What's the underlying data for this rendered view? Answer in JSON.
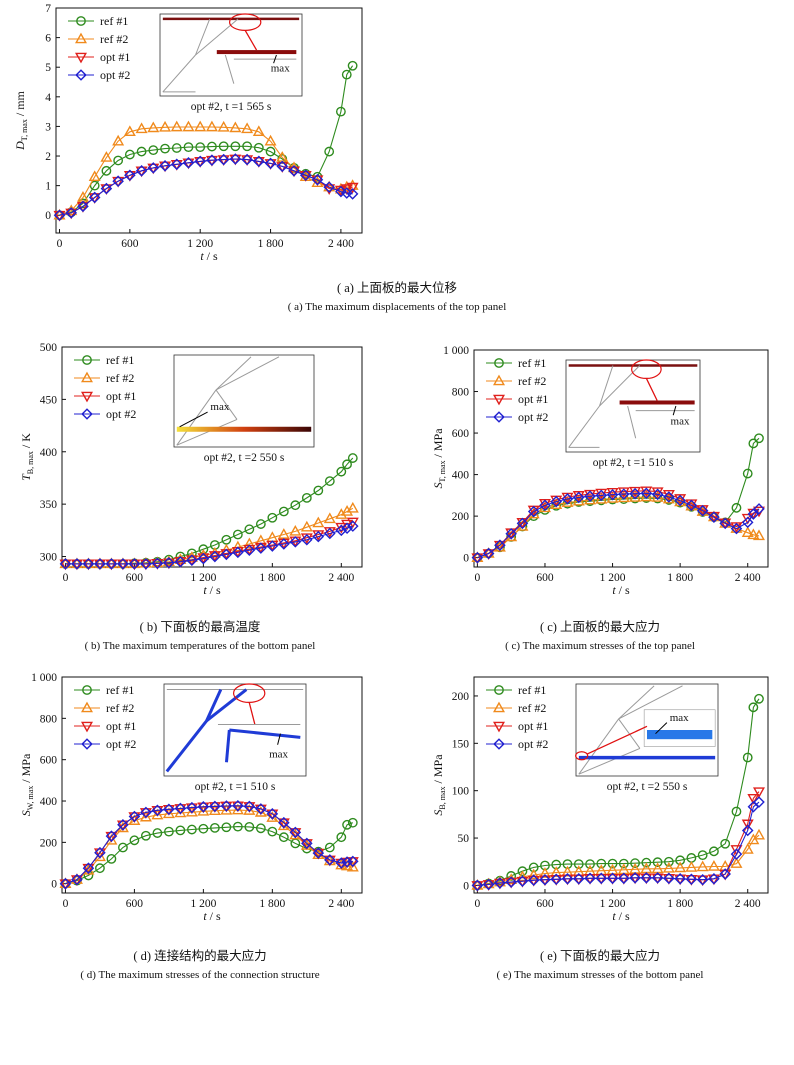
{
  "panels": [
    {
      "id": "a",
      "caption_cn": "( a) 上面板的最大位移",
      "caption_en": "( a) The maximum displacements of the top panel",
      "inset_caption": "opt #2, t =1 565 s",
      "inset_label": "max",
      "inset_kind": "top"
    },
    {
      "id": "b",
      "caption_cn": "( b) 下面板的最高温度",
      "caption_en": "( b) The maximum temperatures of the bottom panel",
      "inset_caption": "opt #2, t =2 550 s",
      "inset_label": "max",
      "inset_kind": "temp"
    },
    {
      "id": "c",
      "caption_cn": "( c) 上面板的最大应力",
      "caption_en": "( c) The maximum stresses of the top panel",
      "inset_caption": "opt #2, t =1 510 s",
      "inset_label": "max",
      "inset_kind": "top"
    },
    {
      "id": "d",
      "caption_cn": "( d) 连接结构的最大应力",
      "caption_en": "( d) The maximum stresses of the connection structure",
      "inset_caption": "opt #2, t =1 510 s",
      "inset_label": "max",
      "inset_kind": "web"
    },
    {
      "id": "e",
      "caption_cn": "( e) 下面板的最大应力",
      "caption_en": "( e) The maximum stresses of the bottom panel",
      "inset_caption": "opt #2, t =2 550 s",
      "inset_label": "max",
      "inset_kind": "bottom"
    }
  ],
  "series_styles": [
    {
      "name": "ref #1",
      "color": "#2e8b1e",
      "marker": "circle"
    },
    {
      "name": "ref #2",
      "color": "#f08a1c",
      "marker": "triangle-up"
    },
    {
      "name": "opt #1",
      "color": "#e0201c",
      "marker": "triangle-down"
    },
    {
      "name": "opt #2",
      "color": "#2020d0",
      "marker": "diamond"
    }
  ],
  "chart_data": [
    {
      "id": "a",
      "type": "line",
      "x": [
        0,
        100,
        200,
        300,
        400,
        500,
        600,
        700,
        800,
        900,
        1000,
        1100,
        1200,
        1300,
        1400,
        1500,
        1600,
        1700,
        1800,
        1900,
        2000,
        2100,
        2200,
        2300,
        2400,
        2450,
        2500
      ],
      "xlabel": "t / s",
      "ylabel": "D_T, max / mm",
      "ylabel_main": "D",
      "ylabel_sub": "T, max",
      "ylabel_unit": "/ mm",
      "xlim": [
        -30,
        2580
      ],
      "ylim": [
        -0.6,
        7
      ],
      "xticks": [
        0,
        600,
        1200,
        1800,
        2400
      ],
      "xtick_labels": [
        "0",
        "600",
        "1 200",
        "1 800",
        "2 400"
      ],
      "yticks": [
        0,
        1,
        2,
        3,
        4,
        5,
        6,
        7
      ],
      "ytick_labels": [
        "0",
        "1",
        "2",
        "3",
        "4",
        "5",
        "6",
        "7"
      ],
      "legend": "top-left",
      "series": [
        {
          "name": "ref #1",
          "values": [
            0,
            0.1,
            0.4,
            1.0,
            1.5,
            1.85,
            2.05,
            2.15,
            2.2,
            2.25,
            2.27,
            2.3,
            2.3,
            2.32,
            2.33,
            2.33,
            2.33,
            2.28,
            2.15,
            1.9,
            1.6,
            1.4,
            1.3,
            2.15,
            3.5,
            4.75,
            5.05
          ]
        },
        {
          "name": "ref #2",
          "values": [
            0,
            0.15,
            0.6,
            1.3,
            1.95,
            2.5,
            2.82,
            2.92,
            2.95,
            2.97,
            2.98,
            2.98,
            2.98,
            2.98,
            2.97,
            2.95,
            2.92,
            2.82,
            2.5,
            1.95,
            1.6,
            1.3,
            1.1,
            0.95,
            0.88,
            0.95,
            1.0
          ]
        },
        {
          "name": "opt #1",
          "values": [
            0,
            0.08,
            0.3,
            0.6,
            0.9,
            1.15,
            1.35,
            1.5,
            1.6,
            1.67,
            1.72,
            1.77,
            1.82,
            1.86,
            1.88,
            1.9,
            1.88,
            1.82,
            1.75,
            1.65,
            1.5,
            1.35,
            1.2,
            0.9,
            0.85,
            0.9,
            0.95
          ]
        },
        {
          "name": "opt #2",
          "values": [
            0,
            0.08,
            0.3,
            0.6,
            0.9,
            1.15,
            1.35,
            1.5,
            1.6,
            1.67,
            1.72,
            1.77,
            1.82,
            1.86,
            1.88,
            1.9,
            1.88,
            1.82,
            1.75,
            1.65,
            1.5,
            1.35,
            1.2,
            0.95,
            0.8,
            0.75,
            0.72
          ]
        }
      ]
    },
    {
      "id": "b",
      "type": "line",
      "x": [
        0,
        100,
        200,
        300,
        400,
        500,
        600,
        700,
        800,
        900,
        1000,
        1100,
        1200,
        1300,
        1400,
        1500,
        1600,
        1700,
        1800,
        1900,
        2000,
        2100,
        2200,
        2300,
        2400,
        2450,
        2500
      ],
      "xlabel": "t / s",
      "ylabel": "T_B, max / K",
      "ylabel_main": "T",
      "ylabel_sub": "B, max",
      "ylabel_unit": "/ K",
      "xlim": [
        -30,
        2580
      ],
      "ylim": [
        290,
        500
      ],
      "xticks": [
        0,
        600,
        1200,
        1800,
        2400
      ],
      "xtick_labels": [
        "0",
        "600",
        "1 200",
        "1 800",
        "2 400"
      ],
      "yticks": [
        300,
        350,
        400,
        450,
        500
      ],
      "ytick_labels": [
        "300",
        "350",
        "400",
        "450",
        "500"
      ],
      "legend": "top-left",
      "series": [
        {
          "name": "ref #1",
          "values": [
            293,
            293,
            293,
            293,
            293,
            293,
            293.5,
            294,
            295,
            297,
            300,
            303,
            307,
            311,
            316,
            321,
            326,
            331,
            337,
            343,
            349,
            356,
            363,
            372,
            381,
            388,
            394
          ]
        },
        {
          "name": "ref #2",
          "values": [
            293,
            293,
            293,
            293,
            293,
            293,
            293,
            293.5,
            294,
            295,
            297,
            299,
            301,
            303,
            306,
            309,
            312,
            315,
            318,
            321,
            324,
            328,
            332,
            336,
            340,
            343,
            346
          ]
        },
        {
          "name": "opt #1",
          "values": [
            293,
            293,
            293,
            293,
            293,
            293,
            293,
            293,
            293.5,
            294,
            295.5,
            297,
            299,
            301,
            303,
            305,
            307,
            309,
            311,
            313,
            315,
            318,
            321,
            324,
            328,
            331,
            333
          ]
        },
        {
          "name": "opt #2",
          "values": [
            293,
            293,
            293,
            293,
            293,
            293,
            293,
            293,
            293.5,
            294,
            295,
            296.5,
            298,
            300,
            302,
            304,
            306,
            308,
            310,
            312,
            314,
            316,
            319,
            322,
            325,
            327,
            329
          ]
        }
      ]
    },
    {
      "id": "c",
      "type": "line",
      "x": [
        0,
        100,
        200,
        300,
        400,
        500,
        600,
        700,
        800,
        900,
        1000,
        1100,
        1200,
        1300,
        1400,
        1500,
        1600,
        1700,
        1800,
        1900,
        2000,
        2100,
        2200,
        2300,
        2400,
        2450,
        2500
      ],
      "xlabel": "t / s",
      "ylabel": "S_T, max / MPa",
      "ylabel_main": "S",
      "ylabel_sub": "T, max",
      "ylabel_unit": "/ MPa",
      "xlim": [
        -30,
        2580
      ],
      "ylim": [
        -45,
        1000
      ],
      "xticks": [
        0,
        600,
        1200,
        1800,
        2400
      ],
      "xtick_labels": [
        "0",
        "600",
        "1 200",
        "1 800",
        "2 400"
      ],
      "yticks": [
        0,
        200,
        400,
        600,
        800,
        1000
      ],
      "ytick_labels": [
        "0",
        "200",
        "400",
        "600",
        "800",
        "1 000"
      ],
      "legend": "top-left",
      "series": [
        {
          "name": "ref #1",
          "values": [
            0,
            20,
            50,
            100,
            150,
            200,
            230,
            250,
            260,
            268,
            272,
            276,
            280,
            282,
            285,
            287,
            285,
            278,
            265,
            245,
            220,
            195,
            170,
            240,
            405,
            550,
            575
          ]
        },
        {
          "name": "ref #2",
          "values": [
            0,
            20,
            50,
            100,
            150,
            210,
            240,
            255,
            265,
            272,
            277,
            281,
            285,
            288,
            290,
            292,
            290,
            282,
            268,
            248,
            222,
            196,
            165,
            140,
            120,
            110,
            105
          ]
        },
        {
          "name": "opt #1",
          "values": [
            0,
            20,
            60,
            120,
            170,
            230,
            262,
            278,
            292,
            300,
            306,
            311,
            315,
            318,
            320,
            322,
            318,
            305,
            285,
            260,
            232,
            200,
            168,
            150,
            190,
            215,
            225
          ]
        },
        {
          "name": "opt #2",
          "values": [
            0,
            20,
            60,
            115,
            165,
            222,
            252,
            270,
            283,
            290,
            296,
            300,
            303,
            306,
            308,
            310,
            305,
            292,
            275,
            252,
            226,
            195,
            165,
            140,
            170,
            210,
            235
          ]
        }
      ]
    },
    {
      "id": "d",
      "type": "line",
      "x": [
        0,
        100,
        200,
        300,
        400,
        500,
        600,
        700,
        800,
        900,
        1000,
        1100,
        1200,
        1300,
        1400,
        1500,
        1600,
        1700,
        1800,
        1900,
        2000,
        2100,
        2200,
        2300,
        2400,
        2450,
        2500
      ],
      "xlabel": "t / s",
      "ylabel": "S_W, max / MPa",
      "ylabel_main": "S",
      "ylabel_sub": "W, max",
      "ylabel_unit": "/ MPa",
      "xlim": [
        -30,
        2580
      ],
      "ylim": [
        -45,
        1000
      ],
      "xticks": [
        0,
        600,
        1200,
        1800,
        2400
      ],
      "xtick_labels": [
        "0",
        "600",
        "1 200",
        "1 800",
        "2 400"
      ],
      "yticks": [
        0,
        200,
        400,
        600,
        800,
        1000
      ],
      "ytick_labels": [
        "0",
        "200",
        "400",
        "600",
        "800",
        "1 000"
      ],
      "legend": "top-left",
      "series": [
        {
          "name": "ref #1",
          "values": [
            0,
            15,
            40,
            75,
            120,
            175,
            210,
            232,
            245,
            252,
            258,
            262,
            266,
            270,
            273,
            276,
            275,
            268,
            252,
            225,
            195,
            170,
            155,
            175,
            225,
            285,
            295
          ]
        },
        {
          "name": "ref #2",
          "values": [
            0,
            20,
            65,
            130,
            210,
            270,
            305,
            322,
            332,
            338,
            342,
            346,
            350,
            353,
            355,
            356,
            354,
            345,
            320,
            280,
            235,
            185,
            140,
            110,
            90,
            85,
            80
          ]
        },
        {
          "name": "opt #1",
          "values": [
            0,
            20,
            75,
            150,
            230,
            285,
            325,
            345,
            355,
            360,
            364,
            368,
            372,
            374,
            376,
            377,
            374,
            362,
            338,
            295,
            248,
            195,
            148,
            115,
            100,
            105,
            108
          ]
        },
        {
          "name": "opt #2",
          "values": [
            0,
            20,
            75,
            150,
            230,
            285,
            325,
            345,
            355,
            360,
            364,
            368,
            372,
            374,
            376,
            377,
            374,
            362,
            338,
            295,
            248,
            195,
            148,
            115,
            100,
            105,
            108
          ]
        }
      ]
    },
    {
      "id": "e",
      "type": "line",
      "x": [
        0,
        100,
        200,
        300,
        400,
        500,
        600,
        700,
        800,
        900,
        1000,
        1100,
        1200,
        1300,
        1400,
        1500,
        1600,
        1700,
        1800,
        1900,
        2000,
        2100,
        2200,
        2300,
        2400,
        2450,
        2500
      ],
      "xlabel": "t / s",
      "ylabel": "S_B, max / MPa",
      "ylabel_main": "S",
      "ylabel_sub": "B, max",
      "ylabel_unit": "/ MPa",
      "xlim": [
        -30,
        2580
      ],
      "ylim": [
        -8,
        220
      ],
      "xticks": [
        0,
        600,
        1200,
        1800,
        2400
      ],
      "xtick_labels": [
        "0",
        "600",
        "1 200",
        "1 800",
        "2 400"
      ],
      "yticks": [
        0,
        50,
        100,
        150,
        200
      ],
      "ytick_labels": [
        "0",
        "50",
        "100",
        "150",
        "200"
      ],
      "legend": "top-left",
      "series": [
        {
          "name": "ref #1",
          "values": [
            0,
            2,
            5,
            10,
            15,
            19,
            21,
            22,
            22.5,
            22.5,
            22.5,
            23,
            23,
            23,
            23.5,
            24,
            24.5,
            25,
            26.5,
            29,
            32,
            36,
            44,
            78,
            135,
            188,
            197
          ]
        },
        {
          "name": "ref #2",
          "values": [
            0,
            1.5,
            3.5,
            6,
            9,
            11,
            12.5,
            13.5,
            14,
            14.5,
            15,
            15.5,
            16,
            16.5,
            17,
            17.5,
            17.5,
            18,
            18.5,
            19,
            19.5,
            20,
            20,
            23,
            38,
            48,
            53
          ]
        },
        {
          "name": "opt #1",
          "values": [
            0,
            1,
            2.5,
            3.5,
            4.5,
            5.5,
            6,
            6.5,
            7,
            7,
            7.5,
            7.5,
            7.5,
            7.5,
            8,
            8,
            8,
            7.5,
            7,
            6.5,
            6,
            7,
            12,
            38,
            65,
            92,
            99
          ]
        },
        {
          "name": "opt #2",
          "values": [
            0,
            1,
            2.5,
            3.5,
            4.5,
            5.5,
            6,
            6.5,
            7,
            7,
            7.5,
            7.5,
            7.5,
            7.5,
            8,
            8,
            8,
            7.5,
            7,
            6.5,
            6,
            7,
            12,
            33,
            58,
            83,
            88
          ]
        }
      ]
    }
  ]
}
